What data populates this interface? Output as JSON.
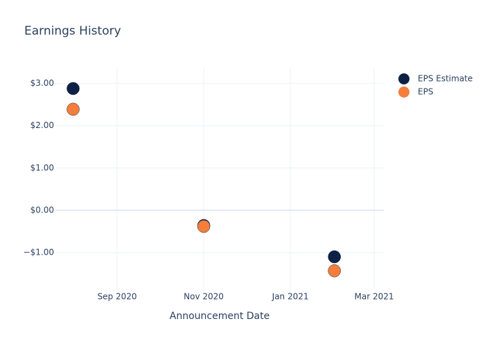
{
  "chart_data": {
    "type": "scatter",
    "title": "Earnings History",
    "x_label": "Announcement Date",
    "x": [
      "2020-08",
      "2020-11",
      "2021-02"
    ],
    "series": [
      {
        "name": "EPS Estimate",
        "color": "#0d2144",
        "values": [
          2.88,
          -0.36,
          -1.1
        ]
      },
      {
        "name": "EPS",
        "color": "#f47e3a",
        "values": [
          2.39,
          -0.38,
          -1.43
        ]
      }
    ],
    "xlim": [
      "2020-07",
      "2021-03"
    ],
    "xticks": [
      {
        "value": "2020-09",
        "label": "Sep 2020"
      },
      {
        "value": "2020-11",
        "label": "Nov 2020"
      },
      {
        "value": "2021-01",
        "label": "Jan 2021"
      },
      {
        "value": "2021-03",
        "label": "Mar 2021"
      }
    ],
    "ylim": [
      -1.9,
      3.37
    ],
    "yticks": [
      {
        "value": -1,
        "label": "−$1.00"
      },
      {
        "value": 0,
        "label": "$0.00"
      },
      {
        "value": 1,
        "label": "$1.00"
      },
      {
        "value": 2,
        "label": "$2.00"
      },
      {
        "value": 3,
        "label": "$3.00"
      }
    ],
    "grid": true,
    "legend": "top-right"
  }
}
